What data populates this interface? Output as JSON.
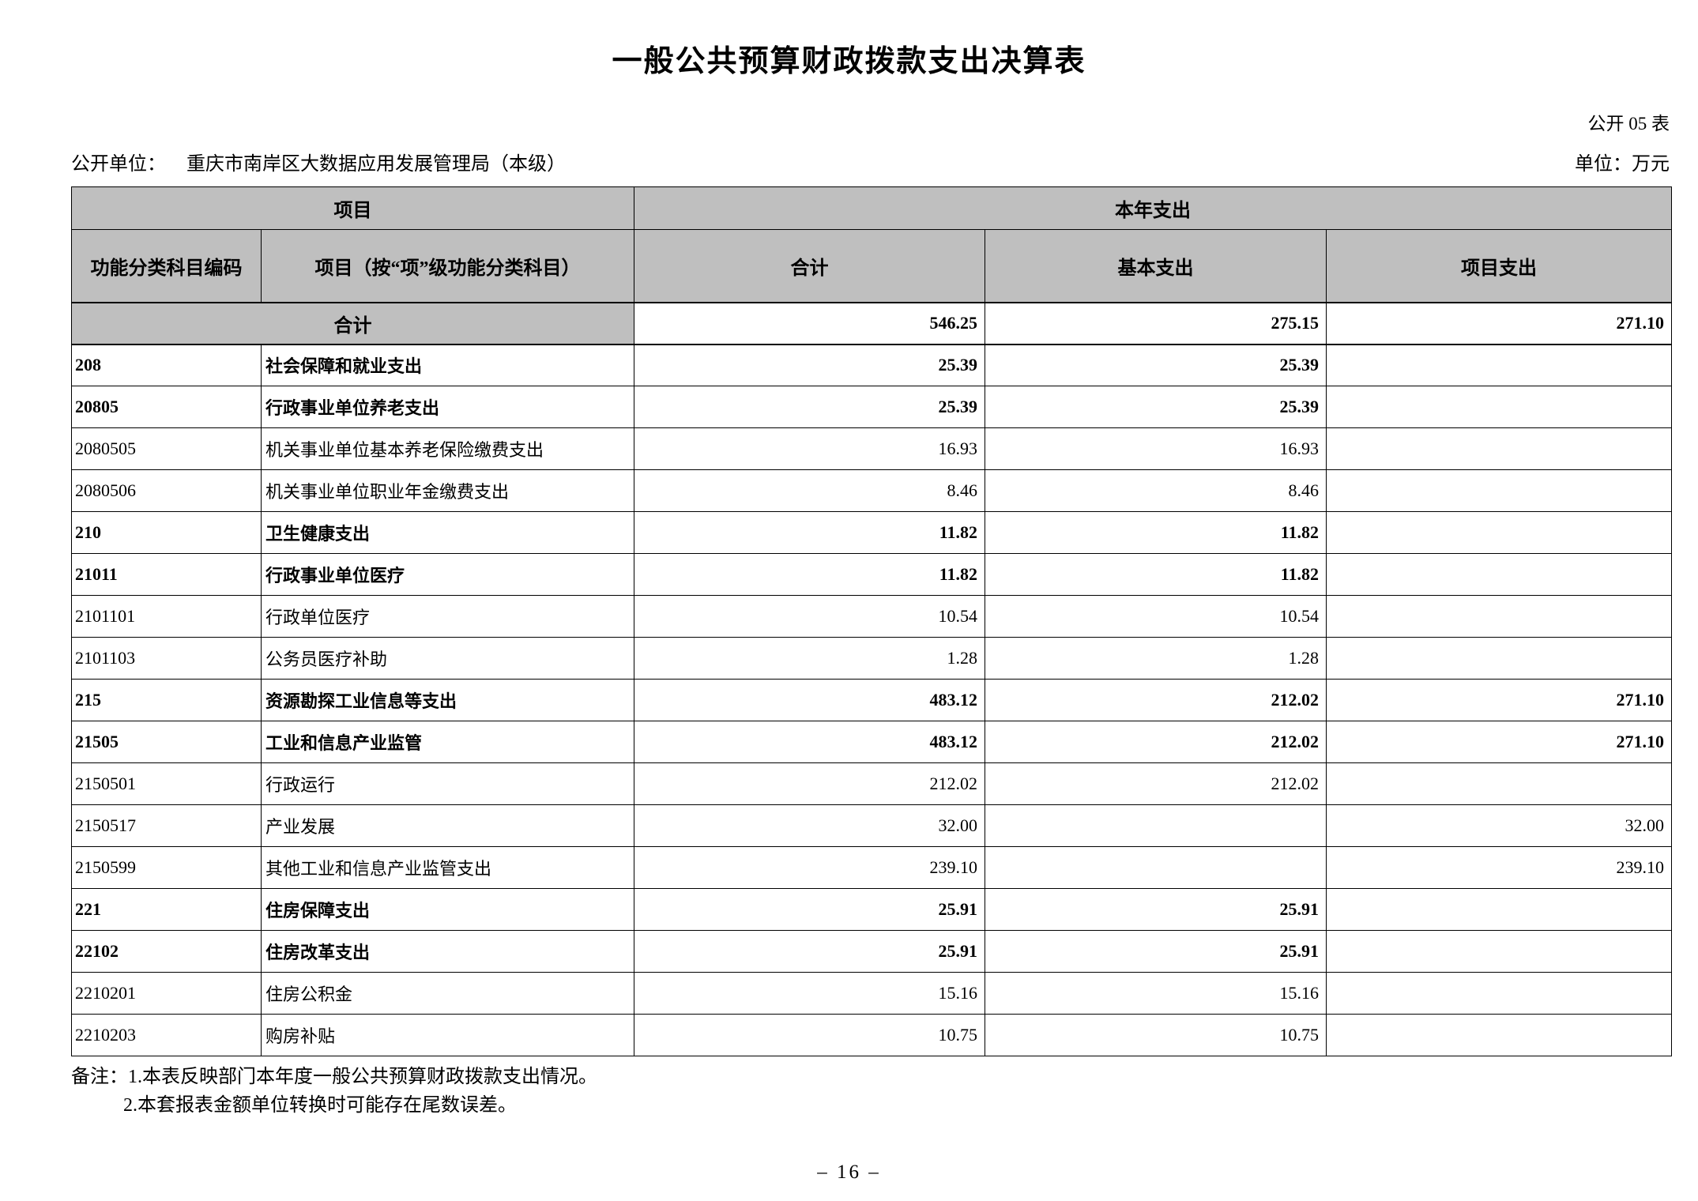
{
  "page": {
    "title": "一般公共预算财政拨款支出决算表",
    "table_code": "公开 05 表",
    "unit_label": "公开单位：",
    "unit_name": "重庆市南岸区大数据应用发展管理局（本级）",
    "currency_unit": "单位：万元",
    "page_number": "– 16 –"
  },
  "table": {
    "header": {
      "group_left": "项目",
      "group_right": "本年支出",
      "columns": [
        "功能分类科目编码",
        "项目（按“项”级功能分类科目）",
        "合计",
        "基本支出",
        "项目支出"
      ]
    },
    "total_row": {
      "label": "合计",
      "total": "546.25",
      "basic": "275.15",
      "project": "271.10"
    },
    "rows": [
      {
        "code": "208",
        "name": "社会保障和就业支出",
        "total": "25.39",
        "basic": "25.39",
        "project": "",
        "bold": true
      },
      {
        "code": "20805",
        "name": "行政事业单位养老支出",
        "total": "25.39",
        "basic": "25.39",
        "project": "",
        "bold": true
      },
      {
        "code": "2080505",
        "name": "机关事业单位基本养老保险缴费支出",
        "total": "16.93",
        "basic": "16.93",
        "project": "",
        "bold": false
      },
      {
        "code": "2080506",
        "name": "机关事业单位职业年金缴费支出",
        "total": "8.46",
        "basic": "8.46",
        "project": "",
        "bold": false
      },
      {
        "code": "210",
        "name": "卫生健康支出",
        "total": "11.82",
        "basic": "11.82",
        "project": "",
        "bold": true
      },
      {
        "code": "21011",
        "name": "行政事业单位医疗",
        "total": "11.82",
        "basic": "11.82",
        "project": "",
        "bold": true
      },
      {
        "code": "2101101",
        "name": "行政单位医疗",
        "total": "10.54",
        "basic": "10.54",
        "project": "",
        "bold": false
      },
      {
        "code": "2101103",
        "name": "公务员医疗补助",
        "total": "1.28",
        "basic": "1.28",
        "project": "",
        "bold": false
      },
      {
        "code": "215",
        "name": "资源勘探工业信息等支出",
        "total": "483.12",
        "basic": "212.02",
        "project": "271.10",
        "bold": true
      },
      {
        "code": "21505",
        "name": "工业和信息产业监管",
        "total": "483.12",
        "basic": "212.02",
        "project": "271.10",
        "bold": true
      },
      {
        "code": "2150501",
        "name": "行政运行",
        "total": "212.02",
        "basic": "212.02",
        "project": "",
        "bold": false
      },
      {
        "code": "2150517",
        "name": "产业发展",
        "total": "32.00",
        "basic": "",
        "project": "32.00",
        "bold": false
      },
      {
        "code": "2150599",
        "name": "其他工业和信息产业监管支出",
        "total": "239.10",
        "basic": "",
        "project": "239.10",
        "bold": false
      },
      {
        "code": "221",
        "name": "住房保障支出",
        "total": "25.91",
        "basic": "25.91",
        "project": "",
        "bold": true
      },
      {
        "code": "22102",
        "name": "住房改革支出",
        "total": "25.91",
        "basic": "25.91",
        "project": "",
        "bold": true
      },
      {
        "code": "2210201",
        "name": "住房公积金",
        "total": "15.16",
        "basic": "15.16",
        "project": "",
        "bold": false
      },
      {
        "code": "2210203",
        "name": "购房补贴",
        "total": "10.75",
        "basic": "10.75",
        "project": "",
        "bold": false
      }
    ]
  },
  "notes": {
    "line1": "备注：1.本表反映部门本年度一般公共预算财政拨款支出情况。",
    "line2": "2.本套报表金额单位转换时可能存在尾数误差。"
  }
}
